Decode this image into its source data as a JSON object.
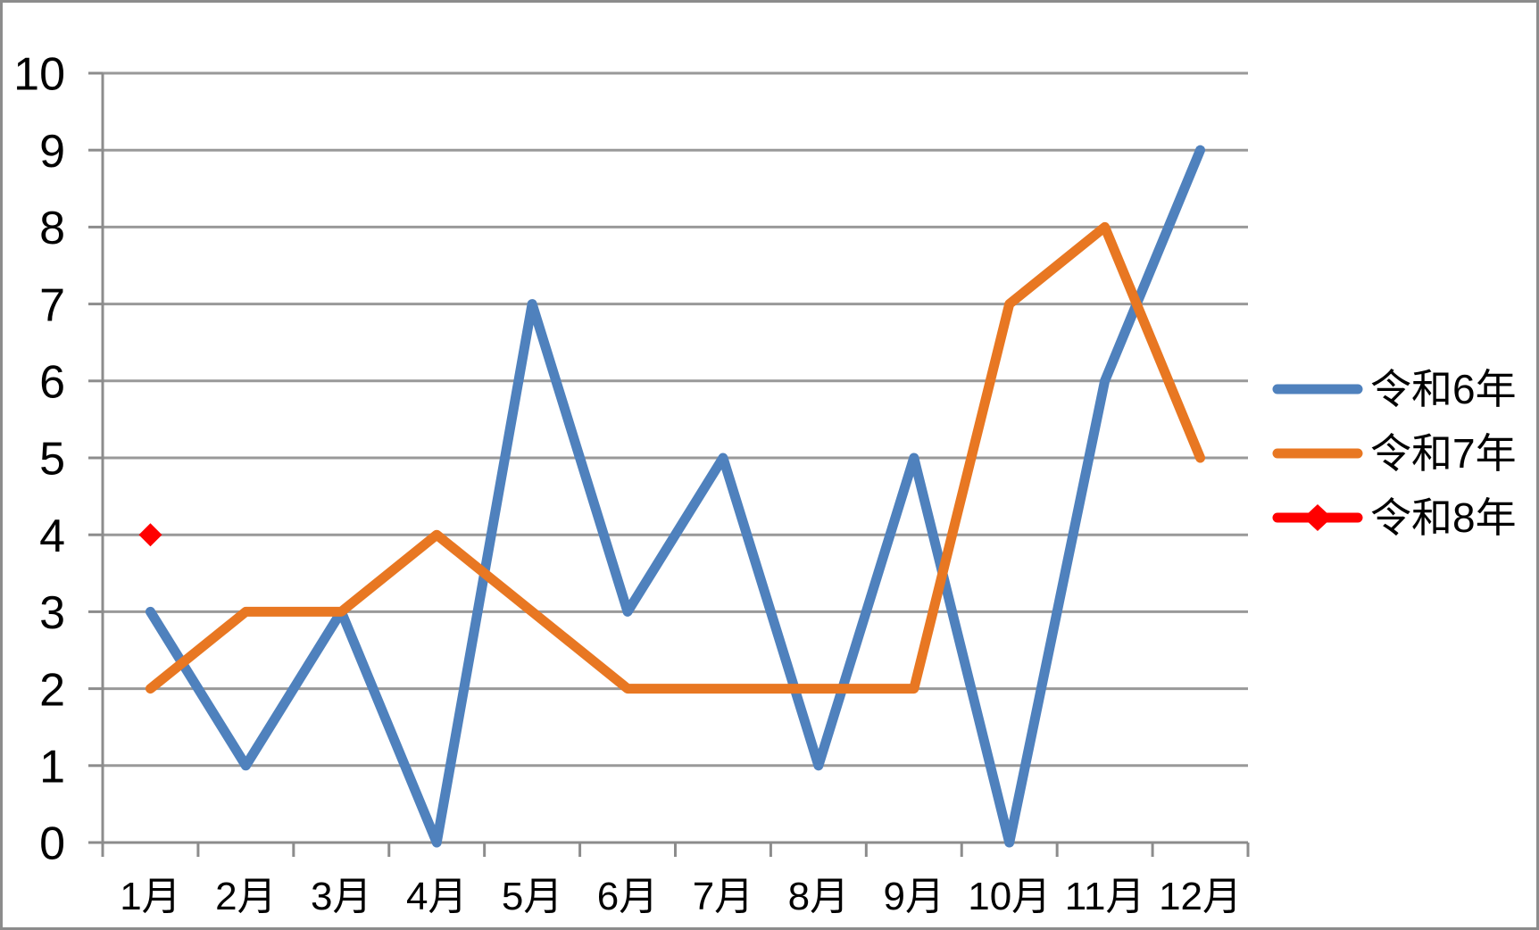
{
  "chart_data": {
    "type": "line",
    "title": "",
    "categories": [
      "1月",
      "2月",
      "3月",
      "4月",
      "5月",
      "6月",
      "7月",
      "8月",
      "9月",
      "10月",
      "11月",
      "12月"
    ],
    "y_ticks": [
      0,
      1,
      2,
      3,
      4,
      5,
      6,
      7,
      8,
      9,
      10
    ],
    "ylim": [
      0,
      10
    ],
    "grid": "horizontal",
    "legend_position": "right",
    "series": [
      {
        "name": "令和6年",
        "color": "#4F81BD",
        "marker": "none",
        "values": [
          3,
          1,
          3,
          0,
          7,
          3,
          5,
          1,
          5,
          0,
          6,
          9
        ]
      },
      {
        "name": "令和7年",
        "color": "#E87722",
        "marker": "none",
        "values": [
          2,
          3,
          3,
          4,
          3,
          2,
          2,
          2,
          2,
          7,
          8,
          5
        ]
      },
      {
        "name": "令和8年",
        "color": "#FF0000",
        "marker": "diamond",
        "values": [
          4,
          null,
          null,
          null,
          null,
          null,
          null,
          null,
          null,
          null,
          null,
          null
        ]
      }
    ]
  },
  "colors": {
    "background": "#FFFFFF",
    "gridline": "#999999",
    "axis": "#8C8C8C",
    "frame_border": "#8C8C8C",
    "text": "#000000"
  }
}
